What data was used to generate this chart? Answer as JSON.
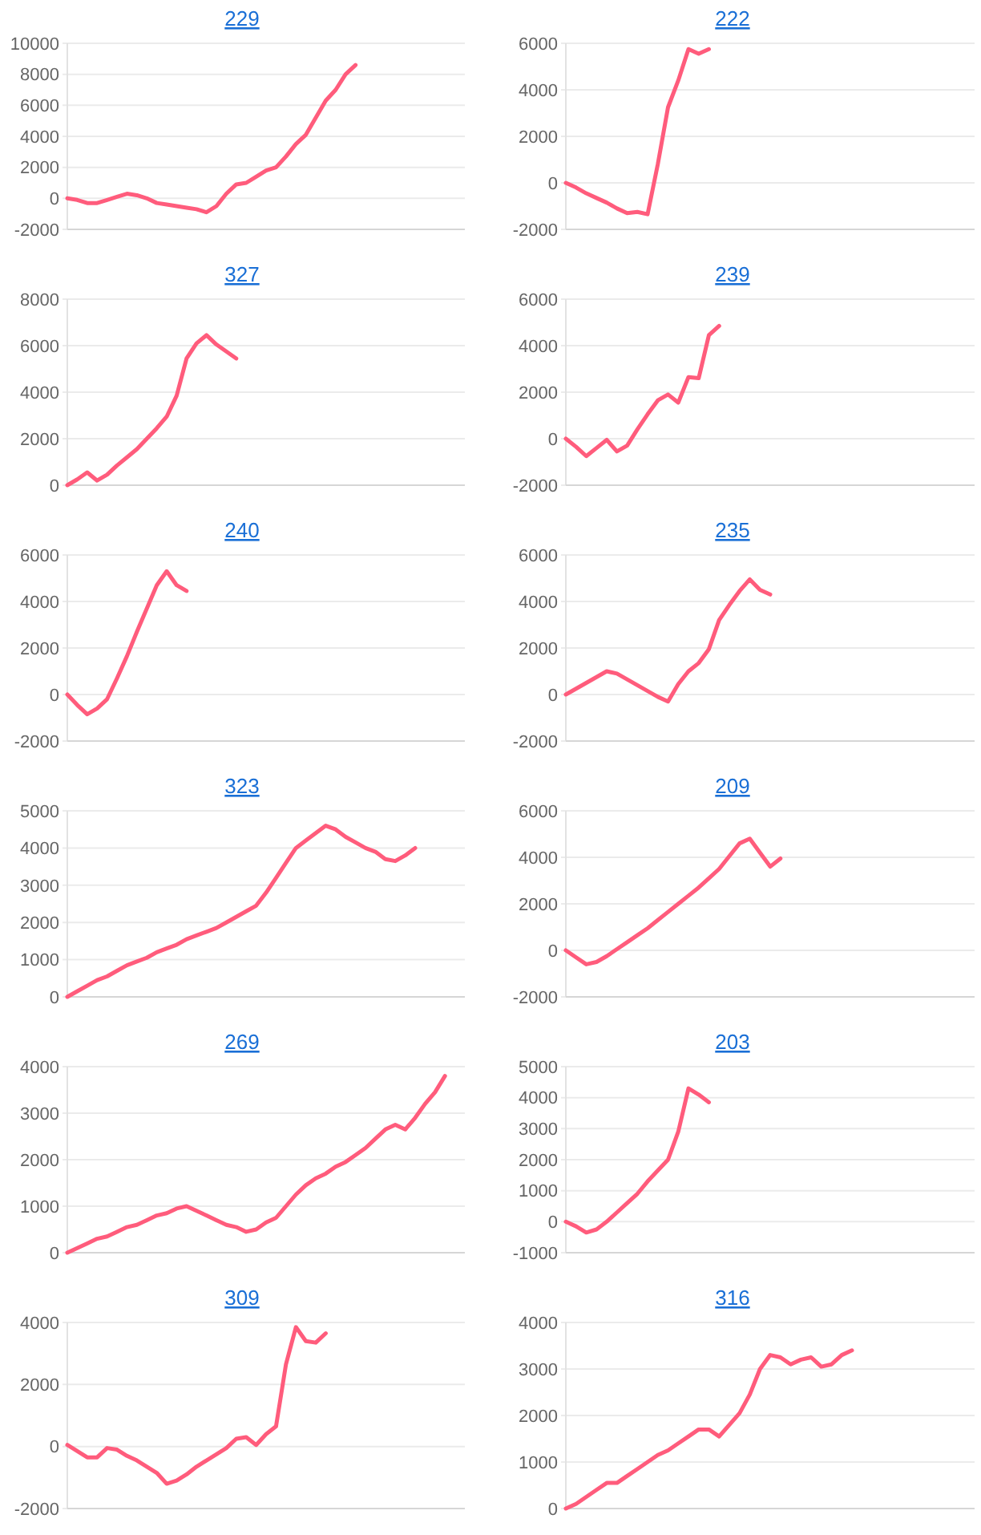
{
  "chart_data": [
    {
      "type": "line",
      "title": "229",
      "tick_labels": "y",
      "grid": "y",
      "color": "#ff5c7c",
      "ylim": [
        -2000,
        10000
      ],
      "yticks": [
        -2000,
        0,
        2000,
        4000,
        6000,
        8000,
        10000
      ],
      "categories": [
        null,
        null,
        null,
        null,
        null,
        null,
        null,
        null,
        null,
        null,
        null,
        null,
        null,
        null,
        null,
        null,
        null,
        null,
        null,
        null,
        null,
        null,
        null,
        null,
        null,
        null,
        null,
        null,
        null,
        null,
        null,
        null,
        null,
        null,
        null,
        null,
        null,
        null,
        null,
        null,
        null
      ],
      "values": [
        0,
        -100,
        -300,
        -300,
        -100,
        100,
        300,
        200,
        0,
        -300,
        -400,
        -500,
        -600,
        -700,
        -900,
        -500,
        300,
        900,
        1000,
        1400,
        1800,
        2000,
        2700,
        3500,
        4100,
        5200,
        6300,
        7000,
        8000,
        8600,
        null,
        null,
        null,
        null,
        null,
        null,
        null,
        null,
        null,
        null,
        null
      ]
    },
    {
      "type": "line",
      "title": "222",
      "tick_labels": "y",
      "grid": "y",
      "color": "#ff5c7c",
      "ylim": [
        -2000,
        6000
      ],
      "yticks": [
        -2000,
        0,
        2000,
        4000,
        6000
      ],
      "categories": [
        null,
        null,
        null,
        null,
        null,
        null,
        null,
        null,
        null,
        null,
        null,
        null,
        null,
        null,
        null,
        null,
        null,
        null,
        null,
        null,
        null,
        null,
        null,
        null,
        null,
        null,
        null,
        null,
        null,
        null,
        null,
        null,
        null,
        null,
        null,
        null,
        null,
        null,
        null,
        null,
        null
      ],
      "values": [
        0,
        -200,
        -450,
        -650,
        -850,
        -1100,
        -1300,
        -1250,
        -1350,
        800,
        3250,
        4400,
        5750,
        5550,
        5750,
        null,
        null,
        null,
        null,
        null,
        null,
        null,
        null,
        null,
        null,
        null,
        null,
        null,
        null,
        null,
        null,
        null,
        null,
        null,
        null,
        null,
        null,
        null,
        null,
        null,
        null
      ]
    },
    {
      "type": "line",
      "title": "327",
      "tick_labels": "y",
      "grid": "y",
      "color": "#ff5c7c",
      "ylim": [
        0,
        8000
      ],
      "yticks": [
        0,
        2000,
        4000,
        6000,
        8000
      ],
      "categories": [
        null,
        null,
        null,
        null,
        null,
        null,
        null,
        null,
        null,
        null,
        null,
        null,
        null,
        null,
        null,
        null,
        null,
        null,
        null,
        null,
        null,
        null,
        null,
        null,
        null,
        null,
        null,
        null,
        null,
        null,
        null,
        null,
        null,
        null,
        null,
        null,
        null,
        null,
        null,
        null,
        null
      ],
      "values": [
        0,
        250,
        550,
        200,
        450,
        850,
        1200,
        1550,
        2000,
        2450,
        2950,
        3850,
        5450,
        6100,
        6450,
        6050,
        5750,
        5450,
        null,
        null,
        null,
        null,
        null,
        null,
        null,
        null,
        null,
        null,
        null,
        null,
        null,
        null,
        null,
        null,
        null,
        null,
        null,
        null,
        null,
        null,
        null
      ]
    },
    {
      "type": "line",
      "title": "239",
      "tick_labels": "y",
      "grid": "y",
      "color": "#ff5c7c",
      "ylim": [
        -2000,
        6000
      ],
      "yticks": [
        -2000,
        0,
        2000,
        4000,
        6000
      ],
      "categories": [
        null,
        null,
        null,
        null,
        null,
        null,
        null,
        null,
        null,
        null,
        null,
        null,
        null,
        null,
        null,
        null,
        null,
        null,
        null,
        null,
        null,
        null,
        null,
        null,
        null,
        null,
        null,
        null,
        null,
        null,
        null,
        null,
        null,
        null,
        null,
        null,
        null,
        null,
        null,
        null,
        null
      ],
      "values": [
        0,
        -350,
        -750,
        -400,
        -50,
        -550,
        -300,
        400,
        1050,
        1650,
        1900,
        1550,
        2650,
        2600,
        4450,
        4850,
        null,
        null,
        null,
        null,
        null,
        null,
        null,
        null,
        null,
        null,
        null,
        null,
        null,
        null,
        null,
        null,
        null,
        null,
        null,
        null,
        null,
        null,
        null,
        null,
        null
      ]
    },
    {
      "type": "line",
      "title": "240",
      "tick_labels": "y",
      "grid": "y",
      "color": "#ff5c7c",
      "ylim": [
        -2000,
        6000
      ],
      "yticks": [
        -2000,
        0,
        2000,
        4000,
        6000
      ],
      "categories": [
        null,
        null,
        null,
        null,
        null,
        null,
        null,
        null,
        null,
        null,
        null,
        null,
        null,
        null,
        null,
        null,
        null,
        null,
        null,
        null,
        null,
        null,
        null,
        null,
        null,
        null,
        null,
        null,
        null,
        null,
        null,
        null,
        null,
        null,
        null,
        null,
        null,
        null,
        null,
        null,
        null
      ],
      "values": [
        0,
        -450,
        -850,
        -600,
        -200,
        700,
        1650,
        2700,
        3700,
        4700,
        5300,
        4700,
        4450,
        null,
        null,
        null,
        null,
        null,
        null,
        null,
        null,
        null,
        null,
        null,
        null,
        null,
        null,
        null,
        null,
        null,
        null,
        null,
        null,
        null,
        null,
        null,
        null,
        null,
        null,
        null,
        null
      ]
    },
    {
      "type": "line",
      "title": "235",
      "tick_labels": "y",
      "grid": "y",
      "color": "#ff5c7c",
      "ylim": [
        -2000,
        6000
      ],
      "yticks": [
        -2000,
        0,
        2000,
        4000,
        6000
      ],
      "categories": [
        null,
        null,
        null,
        null,
        null,
        null,
        null,
        null,
        null,
        null,
        null,
        null,
        null,
        null,
        null,
        null,
        null,
        null,
        null,
        null,
        null,
        null,
        null,
        null,
        null,
        null,
        null,
        null,
        null,
        null,
        null,
        null,
        null,
        null,
        null,
        null,
        null,
        null,
        null,
        null,
        null
      ],
      "values": [
        0,
        250,
        500,
        750,
        1000,
        900,
        650,
        400,
        150,
        -100,
        -300,
        450,
        1000,
        1350,
        1950,
        3200,
        3850,
        4450,
        4950,
        4500,
        4300,
        null,
        null,
        null,
        null,
        null,
        null,
        null,
        null,
        null,
        null,
        null,
        null,
        null,
        null,
        null,
        null,
        null,
        null,
        null,
        null
      ]
    },
    {
      "type": "line",
      "title": "323",
      "tick_labels": "y",
      "grid": "y",
      "color": "#ff5c7c",
      "ylim": [
        0,
        5000
      ],
      "yticks": [
        0,
        1000,
        2000,
        3000,
        4000,
        5000
      ],
      "categories": [
        null,
        null,
        null,
        null,
        null,
        null,
        null,
        null,
        null,
        null,
        null,
        null,
        null,
        null,
        null,
        null,
        null,
        null,
        null,
        null,
        null,
        null,
        null,
        null,
        null,
        null,
        null,
        null,
        null,
        null,
        null,
        null,
        null,
        null,
        null,
        null,
        null,
        null,
        null,
        null,
        null
      ],
      "values": [
        0,
        150,
        300,
        450,
        550,
        700,
        850,
        950,
        1050,
        1200,
        1300,
        1400,
        1550,
        1650,
        1750,
        1850,
        2000,
        2150,
        2300,
        2450,
        2800,
        3200,
        3600,
        4000,
        4200,
        4400,
        4600,
        4500,
        4300,
        4150,
        4000,
        3900,
        3700,
        3650,
        3800,
        4000,
        null,
        null,
        null,
        null,
        null
      ]
    },
    {
      "type": "line",
      "title": "209",
      "tick_labels": "y",
      "grid": "y",
      "color": "#ff5c7c",
      "ylim": [
        -2000,
        6000
      ],
      "yticks": [
        -2000,
        0,
        2000,
        4000,
        6000
      ],
      "categories": [
        null,
        null,
        null,
        null,
        null,
        null,
        null,
        null,
        null,
        null,
        null,
        null,
        null,
        null,
        null,
        null,
        null,
        null,
        null,
        null,
        null,
        null,
        null,
        null,
        null,
        null,
        null,
        null,
        null,
        null,
        null,
        null,
        null,
        null,
        null,
        null,
        null,
        null,
        null,
        null,
        null
      ],
      "values": [
        0,
        -300,
        -600,
        -500,
        -250,
        50,
        350,
        650,
        950,
        1300,
        1650,
        2000,
        2350,
        2700,
        3100,
        3500,
        4050,
        4600,
        4800,
        4200,
        3600,
        3950,
        null,
        null,
        null,
        null,
        null,
        null,
        null,
        null,
        null,
        null,
        null,
        null,
        null,
        null,
        null,
        null,
        null,
        null,
        null
      ]
    },
    {
      "type": "line",
      "title": "269",
      "tick_labels": "y",
      "grid": "y",
      "color": "#ff5c7c",
      "ylim": [
        0,
        4000
      ],
      "yticks": [
        0,
        1000,
        2000,
        3000,
        4000
      ],
      "categories": [
        null,
        null,
        null,
        null,
        null,
        null,
        null,
        null,
        null,
        null,
        null,
        null,
        null,
        null,
        null,
        null,
        null,
        null,
        null,
        null,
        null,
        null,
        null,
        null,
        null,
        null,
        null,
        null,
        null,
        null,
        null,
        null,
        null,
        null,
        null,
        null,
        null,
        null,
        null,
        null,
        null
      ],
      "values": [
        0,
        100,
        200,
        300,
        350,
        450,
        550,
        600,
        700,
        800,
        850,
        950,
        1000,
        900,
        800,
        700,
        600,
        550,
        450,
        500,
        650,
        750,
        1000,
        1250,
        1450,
        1600,
        1700,
        1850,
        1950,
        2100,
        2250,
        2450,
        2650,
        2750,
        2650,
        2900,
        3200,
        3450,
        3800,
        null,
        null
      ]
    },
    {
      "type": "line",
      "title": "203",
      "tick_labels": "y",
      "grid": "y",
      "color": "#ff5c7c",
      "ylim": [
        -1000,
        5000
      ],
      "yticks": [
        -1000,
        0,
        1000,
        2000,
        3000,
        4000,
        5000
      ],
      "categories": [
        null,
        null,
        null,
        null,
        null,
        null,
        null,
        null,
        null,
        null,
        null,
        null,
        null,
        null,
        null,
        null,
        null,
        null,
        null,
        null,
        null,
        null,
        null,
        null,
        null,
        null,
        null,
        null,
        null,
        null,
        null,
        null,
        null,
        null,
        null,
        null,
        null,
        null,
        null,
        null,
        null
      ],
      "values": [
        0,
        -150,
        -350,
        -250,
        0,
        300,
        600,
        900,
        1300,
        1650,
        2000,
        2900,
        4300,
        4100,
        3850,
        null,
        null,
        null,
        null,
        null,
        null,
        null,
        null,
        null,
        null,
        null,
        null,
        null,
        null,
        null,
        null,
        null,
        null,
        null,
        null,
        null,
        null,
        null,
        null,
        null,
        null
      ]
    },
    {
      "type": "line",
      "title": "309",
      "tick_labels": "y",
      "grid": "y",
      "color": "#ff5c7c",
      "ylim": [
        -2000,
        4000
      ],
      "yticks": [
        -2000,
        0,
        2000,
        4000
      ],
      "categories": [
        null,
        null,
        null,
        null,
        null,
        null,
        null,
        null,
        null,
        null,
        null,
        null,
        null,
        null,
        null,
        null,
        null,
        null,
        null,
        null,
        null,
        null,
        null,
        null,
        null,
        null,
        null,
        null,
        null,
        null,
        null,
        null,
        null,
        null,
        null,
        null,
        null,
        null,
        null,
        null,
        null
      ],
      "values": [
        50,
        -150,
        -350,
        -350,
        -50,
        -100,
        -300,
        -450,
        -650,
        -850,
        -1200,
        -1100,
        -900,
        -650,
        -450,
        -250,
        -50,
        250,
        300,
        50,
        400,
        650,
        2650,
        3850,
        3400,
        3350,
        3650,
        null,
        null,
        null,
        null,
        null,
        null,
        null,
        null,
        null,
        null,
        null,
        null,
        null,
        null
      ]
    },
    {
      "type": "line",
      "title": "316",
      "tick_labels": "y",
      "grid": "y",
      "color": "#ff5c7c",
      "ylim": [
        0,
        4000
      ],
      "yticks": [
        0,
        1000,
        2000,
        3000,
        4000
      ],
      "categories": [
        null,
        null,
        null,
        null,
        null,
        null,
        null,
        null,
        null,
        null,
        null,
        null,
        null,
        null,
        null,
        null,
        null,
        null,
        null,
        null,
        null,
        null,
        null,
        null,
        null,
        null,
        null,
        null,
        null,
        null,
        null,
        null,
        null,
        null,
        null,
        null,
        null,
        null,
        null,
        null,
        null
      ],
      "values": [
        0,
        100,
        250,
        400,
        550,
        550,
        700,
        850,
        1000,
        1150,
        1250,
        1400,
        1550,
        1700,
        1700,
        1550,
        1800,
        2050,
        2450,
        3000,
        3300,
        3250,
        3100,
        3200,
        3250,
        3050,
        3100,
        3300,
        3400,
        null,
        null,
        null,
        null,
        null,
        null,
        null,
        null,
        null,
        null,
        null,
        null
      ]
    }
  ]
}
